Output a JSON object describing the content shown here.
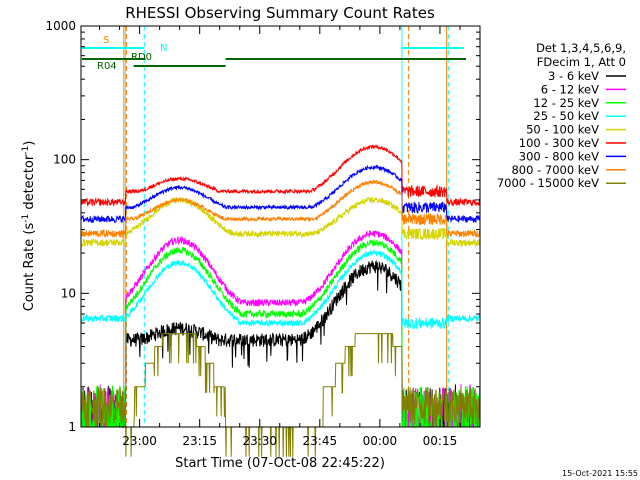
{
  "chart_data": {
    "type": "line",
    "title": "RHESSI Observing Summary Count Rates",
    "xlabel": "Start Time (07-Oct-08 22:45:22)",
    "ylabel": "Count Rate (s⁻¹ detector⁻¹)",
    "ylabel_parts": {
      "main": "Count Rate (s",
      "sup1": "-1",
      "mid": " detector",
      "sup2": "-1",
      "end": ")"
    },
    "y_scale": "log",
    "ylim": [
      1,
      1000
    ],
    "xlim": [
      "22:45:22",
      "00:25:00"
    ],
    "x_ticks": [
      "23:00",
      "23:15",
      "23:30",
      "23:45",
      "00:00",
      "00:15"
    ],
    "y_ticks": [
      "1",
      "10",
      "100",
      "1000"
    ],
    "footer_date": "15-Oct-2021 15:55",
    "legend": {
      "placement": "right",
      "header": [
        "Det 1,3,4,5,6,9,",
        "FDecim 1, Att 0"
      ]
    },
    "series": [
      {
        "name": "3 - 6 keV",
        "color": "#000000",
        "night": 1.0,
        "level": [
          5.5,
          16,
          4.5
        ],
        "noise": 0.12
      },
      {
        "name": "6 - 12 keV",
        "color": "#ff00ff",
        "night": 1.0,
        "level": [
          25,
          28,
          8.5
        ],
        "noise": 0.06
      },
      {
        "name": "12 - 25 keV",
        "color": "#00ff00",
        "night": 1.0,
        "level": [
          21,
          24,
          7
        ],
        "noise": 0.06
      },
      {
        "name": "25 - 50 keV",
        "color": "#00ffff",
        "night": 6.5,
        "level": [
          17,
          20,
          6
        ],
        "noise": 0.05
      },
      {
        "name": "50 - 100 keV",
        "color": "#d4d400",
        "night": 24,
        "level": [
          50,
          50,
          28
        ],
        "noise": 0.05
      },
      {
        "name": "100 - 300 keV",
        "color": "#ff0000",
        "night": 48,
        "level": [
          72,
          125,
          58
        ],
        "noise": 0.03
      },
      {
        "name": "300 - 800 keV",
        "color": "#0000ff",
        "night": 36,
        "level": [
          62,
          88,
          44
        ],
        "noise": 0.03
      },
      {
        "name": "800 - 7000 keV",
        "color": "#ff8000",
        "night": 28,
        "level": [
          50,
          68,
          36
        ],
        "noise": 0.03
      },
      {
        "name": "7000 - 15000 keV",
        "color": "#808000",
        "night": 1.5,
        "level": [
          5.5,
          5.5,
          1.3
        ],
        "noise": 0.0
      }
    ],
    "flags": [
      {
        "label": "S",
        "color": "#ff8000"
      },
      {
        "label": "N",
        "color": "#00ffff"
      },
      {
        "label": "RD0",
        "color": "#006400"
      },
      {
        "label": "R04",
        "color": "#006400"
      }
    ],
    "intervals": {
      "night_before_end": "22:56:30",
      "night_after_start": "00:16:40",
      "saa_start": "00:05:30",
      "saa_end": "00:16:40",
      "n_before": "23:01:10",
      "n_after": "00:07:10"
    }
  }
}
